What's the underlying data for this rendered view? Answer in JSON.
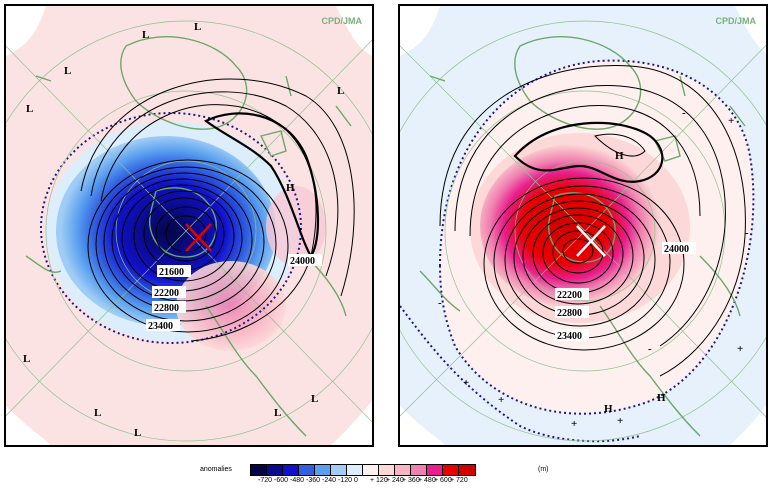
{
  "credit": "CPD/JMA",
  "legend": {
    "title": "anomalies",
    "units": "(m)",
    "colors": [
      "#050546",
      "#0a0a8c",
      "#1111cc",
      "#3060e0",
      "#5aa0f0",
      "#a0cdf5",
      "#dceefc",
      "#fdf0ee",
      "#fcd8d8",
      "#f8b4c4",
      "#f080b0",
      "#e81e8c",
      "#e80000",
      "#d00000"
    ],
    "ticks": [
      "-720",
      "-600",
      "-480",
      "-360",
      "-240",
      "-120",
      "0",
      "+ 120",
      "+ 240",
      "+ 360",
      "+ 480",
      "+ 600",
      "+ 720"
    ]
  },
  "left_panel": {
    "contour_labels": [
      "21600",
      "22200",
      "22800",
      "23400",
      "24000"
    ],
    "pressure_labels": [
      "L",
      "L",
      "L",
      "L",
      "L",
      "L",
      "L",
      "L",
      "L",
      "L",
      "H"
    ]
  },
  "right_panel": {
    "contour_labels": [
      "22200",
      "22800",
      "23400",
      "24000"
    ],
    "pressure_labels": [
      "H",
      "H",
      "H"
    ],
    "anomaly_signs": [
      "-",
      "-",
      "-",
      "-",
      "+",
      "+",
      "+",
      "+",
      "+",
      "+"
    ]
  }
}
